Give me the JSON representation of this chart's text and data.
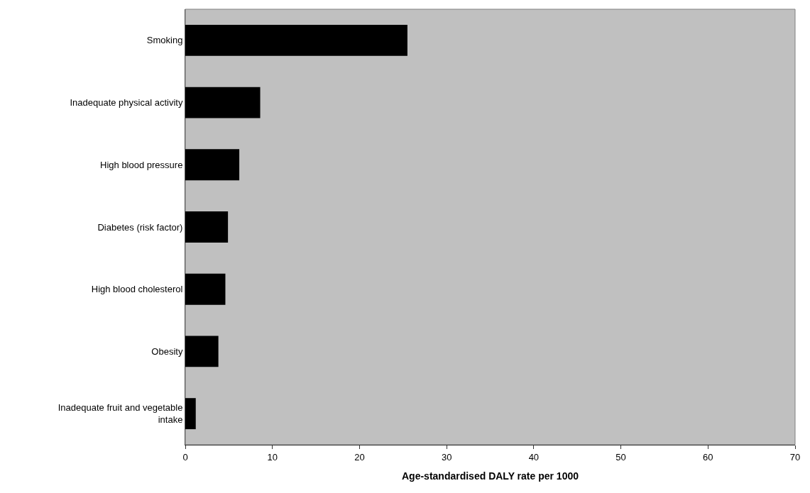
{
  "chart_data": {
    "type": "bar",
    "orientation": "horizontal",
    "xlabel": "Age-standardised DALY rate per 1000",
    "categories": [
      "Smoking",
      "Inadequate physical activity",
      "High blood pressure",
      "Diabetes (risk factor)",
      "High blood cholesterol",
      "Obesity",
      "Inadequate fruit and vegetable intake"
    ],
    "values": [
      25.5,
      8.6,
      6.2,
      4.9,
      4.6,
      3.8,
      1.2
    ],
    "color": "#000000",
    "xlim": [
      0,
      70
    ],
    "xticks": [
      0,
      10,
      20,
      30,
      40,
      50,
      60,
      70
    ],
    "grid": false,
    "legend": false
  }
}
